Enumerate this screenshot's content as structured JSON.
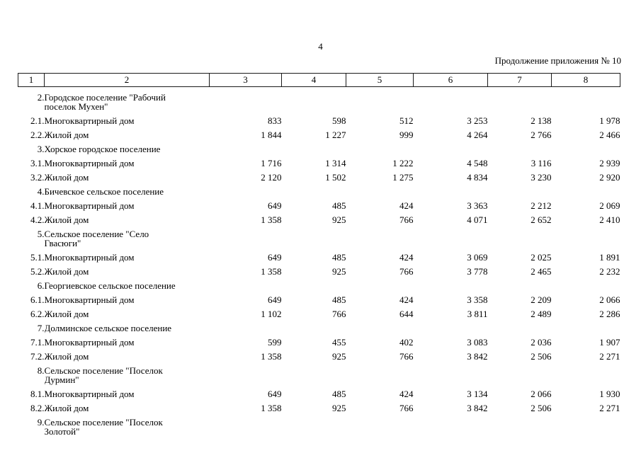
{
  "page": {
    "page_number": "4",
    "continuation_note": "Продолжение приложения № 10"
  },
  "table": {
    "column_numbers": [
      "1",
      "2",
      "3",
      "4",
      "5",
      "6",
      "7",
      "8"
    ],
    "rows": [
      {
        "type": "section",
        "num": "2.",
        "name": "Городское поселение \"Рабочий\nпоселок Мухен\""
      },
      {
        "type": "data",
        "num": "2.1.",
        "name": "Многоквартирный дом",
        "values": [
          "833",
          "598",
          "512",
          "3 253",
          "2 138",
          "1 978"
        ]
      },
      {
        "type": "data",
        "num": "2.2.",
        "name": "Жилой дом",
        "values": [
          "1 844",
          "1 227",
          "999",
          "4 264",
          "2 766",
          "2 466"
        ]
      },
      {
        "type": "section",
        "num": "3.",
        "name": "Хорское городское поселение"
      },
      {
        "type": "data",
        "num": "3.1.",
        "name": "Многоквартирный дом",
        "values": [
          "1 716",
          "1 314",
          "1 222",
          "4 548",
          "3 116",
          "2 939"
        ]
      },
      {
        "type": "data",
        "num": "3.2.",
        "name": "Жилой дом",
        "values": [
          "2 120",
          "1 502",
          "1 275",
          "4 834",
          "3 230",
          "2 920"
        ]
      },
      {
        "type": "section",
        "num": "4.",
        "name": "Бичевское сельское поселение"
      },
      {
        "type": "data",
        "num": "4.1.",
        "name": "Многоквартирный дом",
        "values": [
          "649",
          "485",
          "424",
          "3 363",
          "2 212",
          "2 069"
        ]
      },
      {
        "type": "data",
        "num": "4.2.",
        "name": "Жилой дом",
        "values": [
          "1 358",
          "925",
          "766",
          "4 071",
          "2 652",
          "2 410"
        ]
      },
      {
        "type": "section",
        "num": "5.",
        "name": "Сельское поселение \"Село\nГвасюги\""
      },
      {
        "type": "data",
        "num": "5.1.",
        "name": "Многоквартирный дом",
        "values": [
          "649",
          "485",
          "424",
          "3 069",
          "2 025",
          "1 891"
        ]
      },
      {
        "type": "data",
        "num": "5.2.",
        "name": "Жилой дом",
        "values": [
          "1 358",
          "925",
          "766",
          "3 778",
          "2 465",
          "2 232"
        ]
      },
      {
        "type": "section",
        "num": "6.",
        "name": "Георгиевское сельское поселение"
      },
      {
        "type": "data",
        "num": "6.1.",
        "name": "Многоквартирный дом",
        "values": [
          "649",
          "485",
          "424",
          "3 358",
          "2 209",
          "2 066"
        ]
      },
      {
        "type": "data",
        "num": "6.2.",
        "name": "Жилой дом",
        "values": [
          "1 102",
          "766",
          "644",
          "3 811",
          "2 489",
          "2 286"
        ]
      },
      {
        "type": "section",
        "num": "7.",
        "name": "Долминское сельское поселение"
      },
      {
        "type": "data",
        "num": "7.1.",
        "name": "Многоквартирный дом",
        "values": [
          "599",
          "455",
          "402",
          "3 083",
          "2 036",
          "1 907"
        ]
      },
      {
        "type": "data",
        "num": "7.2.",
        "name": "Жилой дом",
        "values": [
          "1 358",
          "925",
          "766",
          "3 842",
          "2 506",
          "2 271"
        ]
      },
      {
        "type": "section",
        "num": "8.",
        "name": "Сельское поселение \"Поселок\nДурмин\""
      },
      {
        "type": "data",
        "num": "8.1.",
        "name": "Многоквартирный дом",
        "values": [
          "649",
          "485",
          "424",
          "3 134",
          "2 066",
          "1 930"
        ]
      },
      {
        "type": "data",
        "num": "8.2.",
        "name": "Жилой дом",
        "values": [
          "1 358",
          "925",
          "766",
          "3 842",
          "2 506",
          "2 271"
        ]
      },
      {
        "type": "section",
        "num": "9.",
        "name": "Сельское поселение \"Поселок\nЗолотой\""
      }
    ]
  }
}
